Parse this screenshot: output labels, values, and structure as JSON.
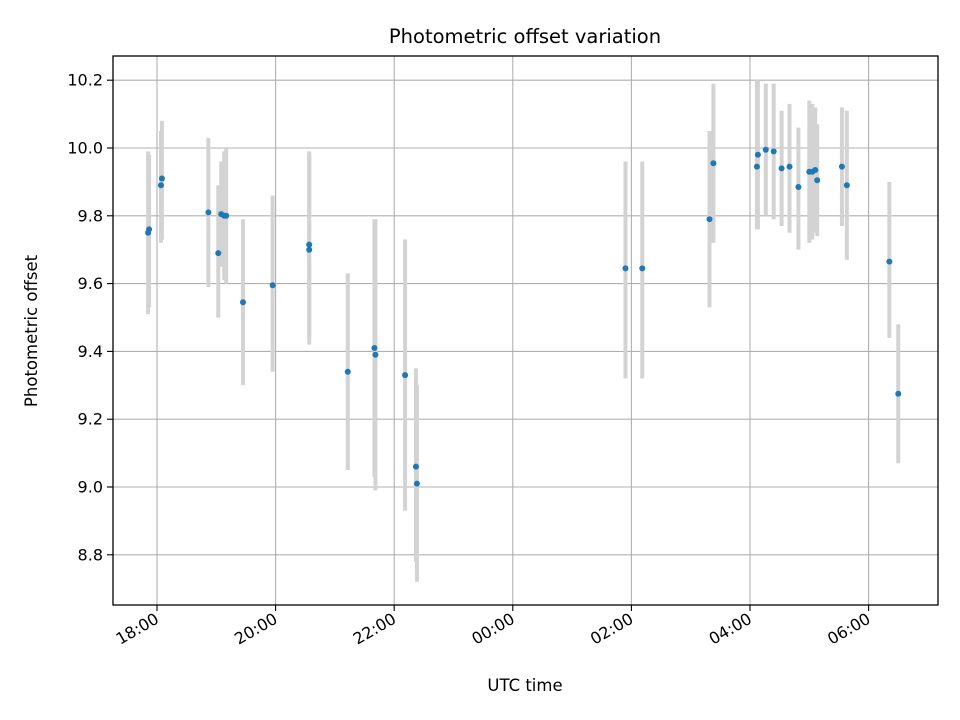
{
  "chart_data": {
    "type": "scatter",
    "title": "Photometric offset variation",
    "xlabel": "UTC time",
    "ylabel": "Photometric offset",
    "x_axis": "time (hours since 18:00 on the first night; ticks every 2 h)",
    "x_ticks": [
      "18:00",
      "20:00",
      "22:00",
      "00:00",
      "02:00",
      "04:00",
      "06:00"
    ],
    "y_ticks": [
      "8.8",
      "9.0",
      "9.2",
      "9.4",
      "9.6",
      "9.8",
      "10.0",
      "10.2"
    ],
    "xlim": [
      "17:15",
      "07:05"
    ],
    "ylim": [
      8.65,
      10.27
    ],
    "grid": true,
    "colors": {
      "marker": "#1f77b4",
      "errorbar": "#d3d3d3",
      "grid": "#b0b0b0"
    },
    "points": [
      {
        "x": "17:51",
        "y": 9.75,
        "ylo": 9.51,
        "yhi": 9.99
      },
      {
        "x": "17:52",
        "y": 9.76,
        "ylo": 9.53,
        "yhi": 9.98
      },
      {
        "x": "18:04",
        "y": 9.89,
        "ylo": 9.72,
        "yhi": 10.05
      },
      {
        "x": "18:05",
        "y": 9.91,
        "ylo": 9.73,
        "yhi": 10.08
      },
      {
        "x": "18:52",
        "y": 9.81,
        "ylo": 9.59,
        "yhi": 10.03
      },
      {
        "x": "19:02",
        "y": 9.69,
        "ylo": 9.5,
        "yhi": 9.89
      },
      {
        "x": "19:05",
        "y": 9.805,
        "ylo": 9.65,
        "yhi": 9.96
      },
      {
        "x": "19:08",
        "y": 9.8,
        "ylo": 9.61,
        "yhi": 9.99
      },
      {
        "x": "19:10",
        "y": 9.8,
        "ylo": 9.6,
        "yhi": 10.0
      },
      {
        "x": "19:27",
        "y": 9.545,
        "ylo": 9.3,
        "yhi": 9.79
      },
      {
        "x": "19:57",
        "y": 9.595,
        "ylo": 9.34,
        "yhi": 9.86
      },
      {
        "x": "20:34",
        "y": 9.7,
        "ylo": 9.42,
        "yhi": 9.98
      },
      {
        "x": "20:34",
        "y": 9.715,
        "ylo": 9.44,
        "yhi": 9.99
      },
      {
        "x": "21:13",
        "y": 9.34,
        "ylo": 9.05,
        "yhi": 9.63
      },
      {
        "x": "21:40",
        "y": 9.41,
        "ylo": 9.03,
        "yhi": 9.79
      },
      {
        "x": "21:41",
        "y": 9.39,
        "ylo": 8.99,
        "yhi": 9.79
      },
      {
        "x": "22:11",
        "y": 9.33,
        "ylo": 8.93,
        "yhi": 9.73
      },
      {
        "x": "22:22",
        "y": 9.06,
        "ylo": 8.78,
        "yhi": 9.35
      },
      {
        "x": "22:23",
        "y": 9.01,
        "ylo": 8.72,
        "yhi": 9.3
      },
      {
        "x": "01:54",
        "y": 9.645,
        "ylo": 9.32,
        "yhi": 9.96
      },
      {
        "x": "02:11",
        "y": 9.645,
        "ylo": 9.32,
        "yhi": 9.96
      },
      {
        "x": "03:19",
        "y": 9.79,
        "ylo": 9.53,
        "yhi": 10.05
      },
      {
        "x": "03:23",
        "y": 9.955,
        "ylo": 9.72,
        "yhi": 10.19
      },
      {
        "x": "04:07",
        "y": 9.945,
        "ylo": 9.76,
        "yhi": 10.2
      },
      {
        "x": "04:08",
        "y": 9.98,
        "ylo": 9.76,
        "yhi": 10.2
      },
      {
        "x": "04:16",
        "y": 9.995,
        "ylo": 9.8,
        "yhi": 10.19
      },
      {
        "x": "04:24",
        "y": 9.99,
        "ylo": 9.79,
        "yhi": 10.19
      },
      {
        "x": "04:32",
        "y": 9.94,
        "ylo": 9.77,
        "yhi": 10.11
      },
      {
        "x": "04:40",
        "y": 9.945,
        "ylo": 9.75,
        "yhi": 10.13
      },
      {
        "x": "04:49",
        "y": 9.885,
        "ylo": 9.7,
        "yhi": 10.06
      },
      {
        "x": "05:00",
        "y": 9.93,
        "ylo": 9.72,
        "yhi": 10.14
      },
      {
        "x": "05:03",
        "y": 9.93,
        "ylo": 9.73,
        "yhi": 10.13
      },
      {
        "x": "05:06",
        "y": 9.935,
        "ylo": 9.75,
        "yhi": 10.12
      },
      {
        "x": "05:08",
        "y": 9.905,
        "ylo": 9.74,
        "yhi": 10.07
      },
      {
        "x": "05:33",
        "y": 9.945,
        "ylo": 9.77,
        "yhi": 10.12
      },
      {
        "x": "05:38",
        "y": 9.89,
        "ylo": 9.67,
        "yhi": 10.11
      },
      {
        "x": "06:21",
        "y": 9.665,
        "ylo": 9.44,
        "yhi": 9.9
      },
      {
        "x": "06:30",
        "y": 9.275,
        "ylo": 9.07,
        "yhi": 9.48
      }
    ]
  }
}
